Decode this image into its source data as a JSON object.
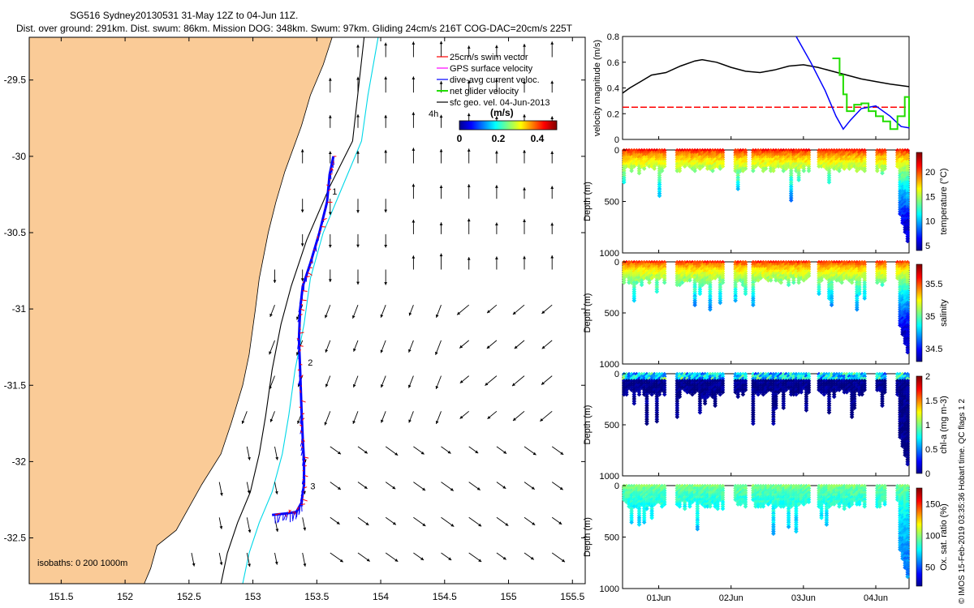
{
  "header": {
    "title": "SG516 Sydney20130531 31-May 12Z to 04-Jun 11Z.",
    "subtitle": "Dist. over ground: 291km. Dist. swum: 86km. Mission DOG: 348km. Swum: 97km. Gliding 24cm/s 216T COG-DAC=20cm/s 225T"
  },
  "footer": {
    "credit": "© IMOS 15-Feb-2019 03:35:36 Hobart time. QC flags 1  2"
  },
  "colors": {
    "land": "#FACB97",
    "swim_vector": "#ff0000",
    "gps_surface": "#ff00ff",
    "dive_avg": "#0000ff",
    "net_glider": "#22dd00",
    "sfc_geo": "#000000",
    "isobath_200": "#00d8e8",
    "isobath_1000": "#000000"
  },
  "chart_data": [
    {
      "id": "map",
      "type": "scatter",
      "title": "",
      "x_ticks": [
        "151.5",
        "152",
        "152.5",
        "153",
        "153.5",
        "154",
        "154.5",
        "155",
        "155.5"
      ],
      "y_ticks": [
        "-29.5",
        "-30",
        "-30.5",
        "-31",
        "-31.5",
        "-32",
        "-32.5"
      ],
      "xlim": [
        151.25,
        155.6
      ],
      "ylim": [
        -32.8,
        -29.22
      ],
      "legend": {
        "placement": "top-right",
        "entries": [
          "25cm/s swim vector",
          "GPS surface velocity",
          "dive-avg current veloc.",
          "net glider velocity",
          "sfc geo. vel. 04-Jun-2013"
        ]
      },
      "time_note": "4h",
      "colorbar": {
        "label": "(m/s)",
        "ticks": [
          "0",
          "0.2",
          "0.4"
        ],
        "range": [
          0,
          0.5
        ]
      },
      "isobath_label": "isobaths: 0   200  1000m",
      "day_markers": [
        {
          "label": "1",
          "lon": 153.62,
          "lat": -30.25
        },
        {
          "label": "2",
          "lon": 153.43,
          "lat": -31.37
        },
        {
          "label": "3",
          "lon": 153.45,
          "lat": -32.18
        }
      ],
      "track": [
        {
          "lon": 153.63,
          "lat": -30.0
        },
        {
          "lon": 153.6,
          "lat": -30.12
        },
        {
          "lon": 153.58,
          "lat": -30.3
        },
        {
          "lon": 153.52,
          "lat": -30.5
        },
        {
          "lon": 153.45,
          "lat": -30.7
        },
        {
          "lon": 153.39,
          "lat": -30.85
        },
        {
          "lon": 153.37,
          "lat": -31.0
        },
        {
          "lon": 153.36,
          "lat": -31.2
        },
        {
          "lon": 153.37,
          "lat": -31.4
        },
        {
          "lon": 153.38,
          "lat": -31.65
        },
        {
          "lon": 153.39,
          "lat": -31.85
        },
        {
          "lon": 153.4,
          "lat": -32.0
        },
        {
          "lon": 153.4,
          "lat": -32.15
        },
        {
          "lon": 153.38,
          "lat": -32.27
        },
        {
          "lon": 153.34,
          "lat": -32.33
        },
        {
          "lon": 153.26,
          "lat": -32.34
        },
        {
          "lon": 153.15,
          "lat": -32.35
        }
      ]
    },
    {
      "id": "velocity",
      "type": "line",
      "ylabel": "velocity magnitude (m/s)",
      "ylim": [
        0,
        0.8
      ],
      "yticks": [
        "0",
        "0.2",
        "0.4",
        "0.6",
        "0.8"
      ],
      "x_range_days": [
        0,
        3.96
      ],
      "series": [
        {
          "name": "sfc geo. vel.",
          "color": "#000000",
          "x": [
            0,
            0.1,
            0.25,
            0.4,
            0.6,
            0.8,
            1.0,
            1.1,
            1.3,
            1.5,
            1.7,
            1.9,
            2.1,
            2.3,
            2.5,
            2.7,
            2.9,
            3.1,
            3.3,
            3.5,
            3.7,
            3.96
          ],
          "y": [
            0.36,
            0.4,
            0.45,
            0.5,
            0.52,
            0.57,
            0.61,
            0.62,
            0.6,
            0.56,
            0.53,
            0.52,
            0.54,
            0.57,
            0.58,
            0.56,
            0.53,
            0.5,
            0.47,
            0.45,
            0.43,
            0.41
          ]
        },
        {
          "name": "swim vector",
          "color": "#ff0000",
          "x": [
            0,
            3.96
          ],
          "y": [
            0.25,
            0.25
          ]
        },
        {
          "name": "dive-avg current veloc.",
          "color": "#0000ff",
          "x": [
            2.4,
            2.6,
            2.8,
            2.95,
            3.05,
            3.15,
            3.3,
            3.5,
            3.7,
            3.85,
            3.96
          ],
          "y": [
            0.8,
            0.6,
            0.38,
            0.18,
            0.08,
            0.15,
            0.24,
            0.26,
            0.18,
            0.1,
            0.09
          ]
        },
        {
          "name": "net glider velocity",
          "color": "#22dd00",
          "x": [
            2.9,
            3.0,
            3.05,
            3.1,
            3.2,
            3.3,
            3.4,
            3.5,
            3.6,
            3.7,
            3.8,
            3.9,
            3.96
          ],
          "y": [
            0.63,
            0.5,
            0.35,
            0.22,
            0.27,
            0.28,
            0.22,
            0.18,
            0.14,
            0.08,
            0.18,
            0.33,
            0.1
          ]
        }
      ]
    },
    {
      "id": "temperature",
      "type": "scatter",
      "ylabel": "Depth (m)",
      "yticks": [
        "0",
        "500",
        "1000"
      ],
      "ylim": [
        0,
        1000
      ],
      "colorbar": {
        "label": "temperature (°C)",
        "ticks": [
          "5",
          "10",
          "15",
          "20"
        ],
        "range": [
          4,
          24
        ]
      },
      "surface_value": 22,
      "deep_value": 6
    },
    {
      "id": "salinity",
      "type": "scatter",
      "ylabel": "Depth (m)",
      "yticks": [
        "0",
        "500",
        "1000"
      ],
      "ylim": [
        0,
        1000
      ],
      "colorbar": {
        "label": "salinity",
        "ticks": [
          "34.5",
          "35",
          "35.5"
        ],
        "range": [
          34.3,
          35.8
        ]
      },
      "surface_value": 35.6,
      "deep_value": 34.4
    },
    {
      "id": "chla",
      "type": "scatter",
      "ylabel": "Depth (m)",
      "yticks": [
        "0",
        "500",
        "1000"
      ],
      "ylim": [
        0,
        1000
      ],
      "colorbar": {
        "label": "chl-a (mg m-3)",
        "ticks": [
          "0",
          "0.5",
          "1",
          "1.5",
          "2"
        ],
        "range": [
          0,
          2
        ]
      },
      "surface_value": 0.7,
      "deep_value": 0.02
    },
    {
      "id": "oxygen",
      "type": "scatter",
      "ylabel": "Depth (m)",
      "yticks": [
        "0",
        "500",
        "1000"
      ],
      "ylim": [
        0,
        1000
      ],
      "colorbar": {
        "label": "Ox. sat. ratio (%)",
        "ticks": [
          "50",
          "100",
          "150"
        ],
        "range": [
          20,
          175
        ]
      },
      "surface_value": 100,
      "deep_value": 60
    }
  ],
  "time_axis": {
    "labels": [
      "01Jun",
      "02Jun",
      "03Jun",
      "04Jun"
    ],
    "label_days": [
      0.5,
      1.5,
      2.5,
      3.5
    ],
    "dive_gaps": [
      [
        0.6,
        0.75
      ],
      [
        1.4,
        1.55
      ],
      [
        1.7,
        1.78
      ],
      [
        2.6,
        2.7
      ],
      [
        3.35,
        3.5
      ],
      [
        3.65,
        3.8
      ]
    ]
  }
}
